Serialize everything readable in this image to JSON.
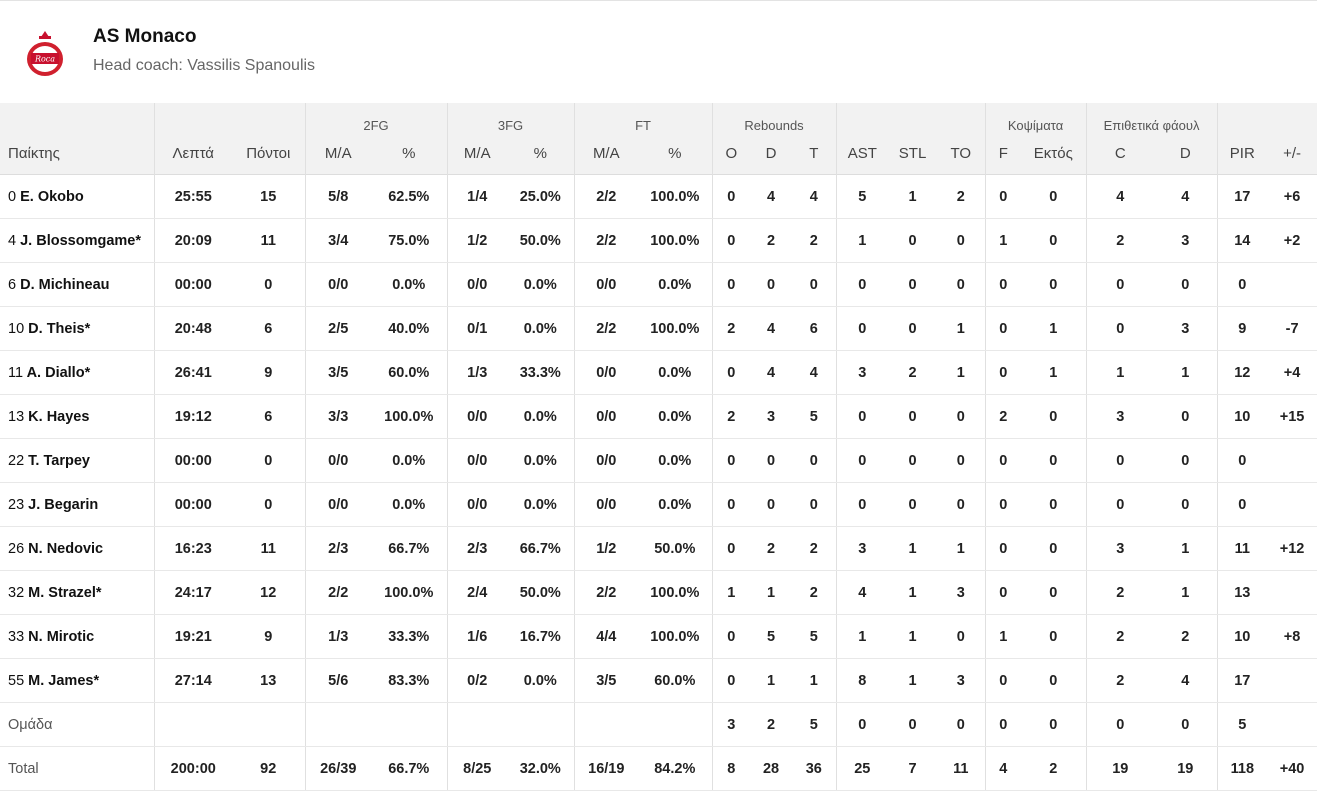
{
  "team": {
    "name": "AS Monaco",
    "coach": "Head coach: Vassilis Spanoulis"
  },
  "groups": {
    "fg2": "2FG",
    "fg3": "3FG",
    "ft": "FT",
    "reb": "Rebounds",
    "blk": "Κοψίματα",
    "fouls": "Επιθετικά φάουλ"
  },
  "columns": [
    "Παίκτης",
    "Λεπτά",
    "Πόντοι",
    "M/A",
    "%",
    "M/A",
    "%",
    "M/A",
    "%",
    "O",
    "D",
    "T",
    "AST",
    "STL",
    "TO",
    "F",
    "Εκτός",
    "C",
    "D",
    "PIR",
    "+/-"
  ],
  "players": [
    {
      "no": "0",
      "name": "E. Okobo",
      "min": "25:55",
      "pts": "15",
      "fg2": "5/8",
      "fg2p": "62.5%",
      "fg3": "1/4",
      "fg3p": "25.0%",
      "ft": "2/2",
      "ftp": "100.0%",
      "o": "0",
      "d": "4",
      "t": "4",
      "ast": "5",
      "stl": "1",
      "to": "2",
      "bf": "0",
      "ba": "0",
      "fc": "4",
      "fd": "4",
      "pir": "17",
      "pm": "+6"
    },
    {
      "no": "4",
      "name": "J. Blossomgame*",
      "min": "20:09",
      "pts": "11",
      "fg2": "3/4",
      "fg2p": "75.0%",
      "fg3": "1/2",
      "fg3p": "50.0%",
      "ft": "2/2",
      "ftp": "100.0%",
      "o": "0",
      "d": "2",
      "t": "2",
      "ast": "1",
      "stl": "0",
      "to": "0",
      "bf": "1",
      "ba": "0",
      "fc": "2",
      "fd": "3",
      "pir": "14",
      "pm": "+2"
    },
    {
      "no": "6",
      "name": "D. Michineau",
      "min": "00:00",
      "pts": "0",
      "fg2": "0/0",
      "fg2p": "0.0%",
      "fg3": "0/0",
      "fg3p": "0.0%",
      "ft": "0/0",
      "ftp": "0.0%",
      "o": "0",
      "d": "0",
      "t": "0",
      "ast": "0",
      "stl": "0",
      "to": "0",
      "bf": "0",
      "ba": "0",
      "fc": "0",
      "fd": "0",
      "pir": "0",
      "pm": ""
    },
    {
      "no": "10",
      "name": "D. Theis*",
      "min": "20:48",
      "pts": "6",
      "fg2": "2/5",
      "fg2p": "40.0%",
      "fg3": "0/1",
      "fg3p": "0.0%",
      "ft": "2/2",
      "ftp": "100.0%",
      "o": "2",
      "d": "4",
      "t": "6",
      "ast": "0",
      "stl": "0",
      "to": "1",
      "bf": "0",
      "ba": "1",
      "fc": "0",
      "fd": "3",
      "pir": "9",
      "pm": "-7"
    },
    {
      "no": "11",
      "name": "A. Diallo*",
      "min": "26:41",
      "pts": "9",
      "fg2": "3/5",
      "fg2p": "60.0%",
      "fg3": "1/3",
      "fg3p": "33.3%",
      "ft": "0/0",
      "ftp": "0.0%",
      "o": "0",
      "d": "4",
      "t": "4",
      "ast": "3",
      "stl": "2",
      "to": "1",
      "bf": "0",
      "ba": "1",
      "fc": "1",
      "fd": "1",
      "pir": "12",
      "pm": "+4"
    },
    {
      "no": "13",
      "name": "K. Hayes",
      "min": "19:12",
      "pts": "6",
      "fg2": "3/3",
      "fg2p": "100.0%",
      "fg3": "0/0",
      "fg3p": "0.0%",
      "ft": "0/0",
      "ftp": "0.0%",
      "o": "2",
      "d": "3",
      "t": "5",
      "ast": "0",
      "stl": "0",
      "to": "0",
      "bf": "2",
      "ba": "0",
      "fc": "3",
      "fd": "0",
      "pir": "10",
      "pm": "+15"
    },
    {
      "no": "22",
      "name": "T. Tarpey",
      "min": "00:00",
      "pts": "0",
      "fg2": "0/0",
      "fg2p": "0.0%",
      "fg3": "0/0",
      "fg3p": "0.0%",
      "ft": "0/0",
      "ftp": "0.0%",
      "o": "0",
      "d": "0",
      "t": "0",
      "ast": "0",
      "stl": "0",
      "to": "0",
      "bf": "0",
      "ba": "0",
      "fc": "0",
      "fd": "0",
      "pir": "0",
      "pm": ""
    },
    {
      "no": "23",
      "name": "J. Begarin",
      "min": "00:00",
      "pts": "0",
      "fg2": "0/0",
      "fg2p": "0.0%",
      "fg3": "0/0",
      "fg3p": "0.0%",
      "ft": "0/0",
      "ftp": "0.0%",
      "o": "0",
      "d": "0",
      "t": "0",
      "ast": "0",
      "stl": "0",
      "to": "0",
      "bf": "0",
      "ba": "0",
      "fc": "0",
      "fd": "0",
      "pir": "0",
      "pm": ""
    },
    {
      "no": "26",
      "name": "N. Nedovic",
      "min": "16:23",
      "pts": "11",
      "fg2": "2/3",
      "fg2p": "66.7%",
      "fg3": "2/3",
      "fg3p": "66.7%",
      "ft": "1/2",
      "ftp": "50.0%",
      "o": "0",
      "d": "2",
      "t": "2",
      "ast": "3",
      "stl": "1",
      "to": "1",
      "bf": "0",
      "ba": "0",
      "fc": "3",
      "fd": "1",
      "pir": "11",
      "pm": "+12"
    },
    {
      "no": "32",
      "name": "M. Strazel*",
      "min": "24:17",
      "pts": "12",
      "fg2": "2/2",
      "fg2p": "100.0%",
      "fg3": "2/4",
      "fg3p": "50.0%",
      "ft": "2/2",
      "ftp": "100.0%",
      "o": "1",
      "d": "1",
      "t": "2",
      "ast": "4",
      "stl": "1",
      "to": "3",
      "bf": "0",
      "ba": "0",
      "fc": "2",
      "fd": "1",
      "pir": "13",
      "pm": ""
    },
    {
      "no": "33",
      "name": "N. Mirotic",
      "min": "19:21",
      "pts": "9",
      "fg2": "1/3",
      "fg2p": "33.3%",
      "fg3": "1/6",
      "fg3p": "16.7%",
      "ft": "4/4",
      "ftp": "100.0%",
      "o": "0",
      "d": "5",
      "t": "5",
      "ast": "1",
      "stl": "1",
      "to": "0",
      "bf": "1",
      "ba": "0",
      "fc": "2",
      "fd": "2",
      "pir": "10",
      "pm": "+8"
    },
    {
      "no": "55",
      "name": "M. James*",
      "min": "27:14",
      "pts": "13",
      "fg2": "5/6",
      "fg2p": "83.3%",
      "fg3": "0/2",
      "fg3p": "0.0%",
      "ft": "3/5",
      "ftp": "60.0%",
      "o": "0",
      "d": "1",
      "t": "1",
      "ast": "8",
      "stl": "1",
      "to": "3",
      "bf": "0",
      "ba": "0",
      "fc": "2",
      "fd": "4",
      "pir": "17",
      "pm": ""
    }
  ],
  "team_row": {
    "label": "Ομάδα",
    "o": "3",
    "d": "2",
    "t": "5",
    "ast": "0",
    "stl": "0",
    "to": "0",
    "bf": "0",
    "ba": "0",
    "fc": "0",
    "fd": "0",
    "pir": "5"
  },
  "total_row": {
    "label": "Total",
    "min": "200:00",
    "pts": "92",
    "fg2": "26/39",
    "fg2p": "66.7%",
    "fg3": "8/25",
    "fg3p": "32.0%",
    "ft": "16/19",
    "ftp": "84.2%",
    "o": "8",
    "d": "28",
    "t": "36",
    "ast": "25",
    "stl": "7",
    "to": "11",
    "bf": "4",
    "ba": "2",
    "fc": "19",
    "fd": "19",
    "pir": "118",
    "pm": "+40"
  }
}
